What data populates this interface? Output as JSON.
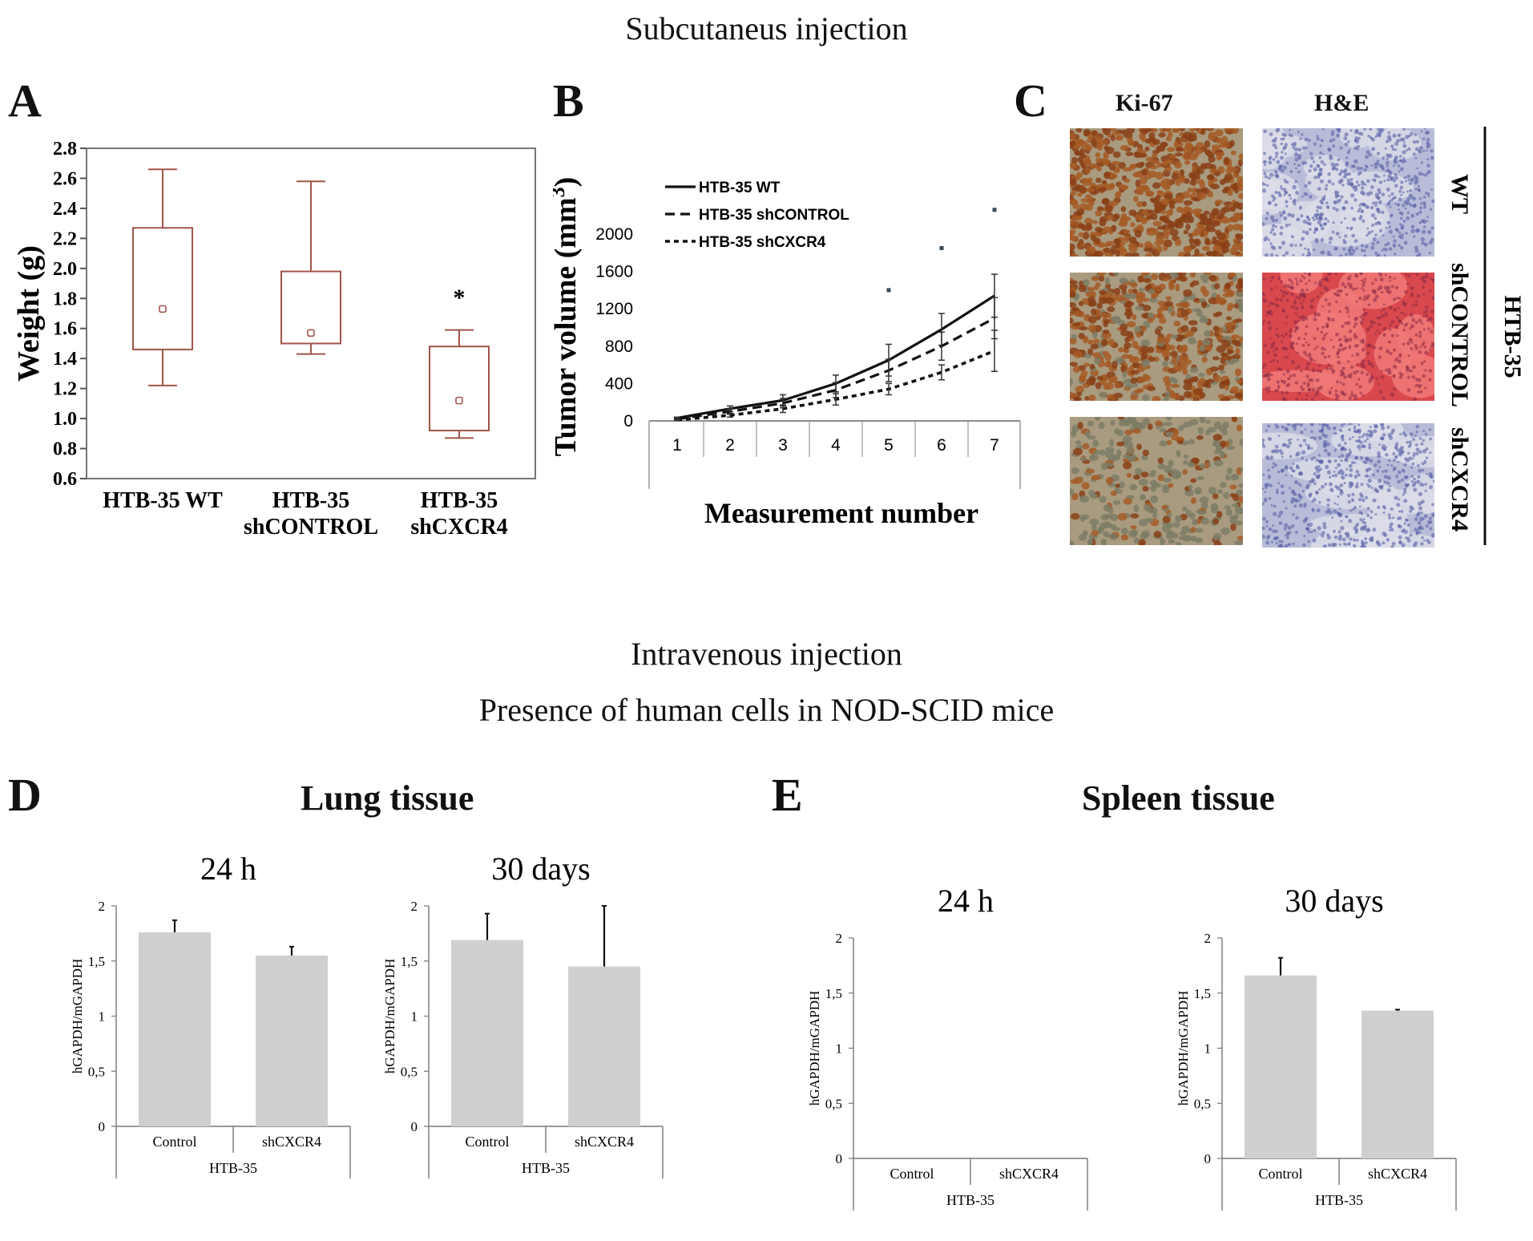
{
  "headings": {
    "subcutaneous": "Subcutaneus injection",
    "intravenous": "Intravenous injection",
    "presence": "Presence of human cells in NOD-SCID mice",
    "lung": "Lung tissue",
    "spleen": "Spleen tissue"
  },
  "panel_letters": {
    "A": "A",
    "B": "B",
    "C": "C",
    "D": "D",
    "E": "E"
  },
  "panel_c": {
    "col_ki67": "Ki-67",
    "col_he": "H&E",
    "row_wt": "WT",
    "row_shcontrol": "shCONTROL",
    "row_shcxcr4": "shCXCR4",
    "group": "HTB-35",
    "colors": {
      "brown": "#8a4a20",
      "purple": "#6b73b8",
      "pink": "#e0525a"
    }
  },
  "chart_data": [
    {
      "id": "A",
      "type": "box",
      "ylabel": "Weight (g)",
      "ylim": [
        0.6,
        2.8
      ],
      "yticks": [
        "0.6",
        "0.8",
        "1.0",
        "1.2",
        "1.4",
        "1.6",
        "1.8",
        "2.0",
        "2.2",
        "2.4",
        "2.6",
        "2.8"
      ],
      "categories": [
        [
          "HTB-35 WT"
        ],
        [
          "HTB-35",
          "shCONTROL"
        ],
        [
          "HTB-35",
          "shCXCR4"
        ]
      ],
      "boxes": [
        {
          "min": 1.22,
          "q1": 1.46,
          "median": 1.73,
          "q3": 2.27,
          "max": 2.66
        },
        {
          "min": 1.43,
          "q1": 1.5,
          "median": 1.57,
          "q3": 1.98,
          "max": 2.58
        },
        {
          "min": 0.87,
          "q1": 0.92,
          "median": 1.12,
          "q3": 1.48,
          "max": 1.59
        }
      ],
      "significance": [
        {
          "category": 2,
          "label": "*",
          "y": 1.84
        }
      ],
      "color": "#a0554a"
    },
    {
      "id": "B",
      "type": "line",
      "xlabel": "Measurement number",
      "ylabel": "Tumor volume (mm³)",
      "ylim": [
        0,
        2000
      ],
      "yticks": [
        "0",
        "400",
        "800",
        "1200",
        "1600",
        "2000"
      ],
      "x": [
        "1",
        "2",
        "3",
        "4",
        "5",
        "6",
        "7"
      ],
      "series": [
        {
          "name": "HTB-35 WT",
          "dash": "solid",
          "values": [
            30,
            130,
            220,
            400,
            650,
            980,
            1340
          ],
          "err": [
            10,
            30,
            60,
            90,
            170,
            170,
            230
          ]
        },
        {
          "name": "HTB-35 shCONTROL",
          "dash": "dashed",
          "values": [
            20,
            100,
            190,
            330,
            540,
            800,
            1100
          ],
          "err": [
            10,
            30,
            50,
            80,
            120,
            150,
            220
          ]
        },
        {
          "name": "HTB-35 shCXCR4",
          "dash": "dotted",
          "values": [
            10,
            60,
            130,
            230,
            340,
            520,
            750
          ],
          "err": [
            5,
            20,
            40,
            60,
            60,
            80,
            220
          ]
        }
      ],
      "outliers": [
        {
          "x": 5,
          "y": 1400
        },
        {
          "x": 6,
          "y": 1850
        },
        {
          "x": 7,
          "y": 2260
        }
      ],
      "grid": false,
      "legend": "top-left"
    },
    {
      "id": "D1",
      "type": "bar",
      "title": "24 h",
      "ylabel": "hGAPDH/mGAPDH",
      "ylim": [
        0,
        2
      ],
      "yticks": [
        "0",
        "0,5",
        "1",
        "1,5",
        "2"
      ],
      "categories": [
        "Control",
        "shCXCR4"
      ],
      "group": "HTB-35",
      "values": [
        1.76,
        1.55
      ],
      "err": [
        0.11,
        0.08
      ]
    },
    {
      "id": "D2",
      "type": "bar",
      "title": "30 days",
      "ylabel": "hGAPDH/mGAPDH",
      "ylim": [
        0,
        2
      ],
      "yticks": [
        "0",
        "0,5",
        "1",
        "1,5",
        "2"
      ],
      "categories": [
        "Control",
        "shCXCR4"
      ],
      "group": "HTB-35",
      "values": [
        1.69,
        1.45
      ],
      "err": [
        0.24,
        0.55
      ]
    },
    {
      "id": "E1",
      "type": "bar",
      "title": "24 h",
      "ylabel": "hGAPDH/mGAPDH",
      "ylim": [
        0,
        2
      ],
      "yticks": [
        "0",
        "0,5",
        "1",
        "1,5",
        "2"
      ],
      "categories": [
        "Control",
        "shCXCR4"
      ],
      "group": "HTB-35",
      "values": [
        0,
        0
      ],
      "err": [
        0,
        0
      ]
    },
    {
      "id": "E2",
      "type": "bar",
      "title": "30 days",
      "ylabel": "hGAPDH/mGAPDH",
      "ylim": [
        0,
        2
      ],
      "yticks": [
        "0",
        "0,5",
        "1",
        "1,5",
        "2"
      ],
      "categories": [
        "Control",
        "shCXCR4"
      ],
      "group": "HTB-35",
      "values": [
        1.66,
        1.34
      ],
      "err": [
        0.16,
        0.01
      ]
    }
  ]
}
